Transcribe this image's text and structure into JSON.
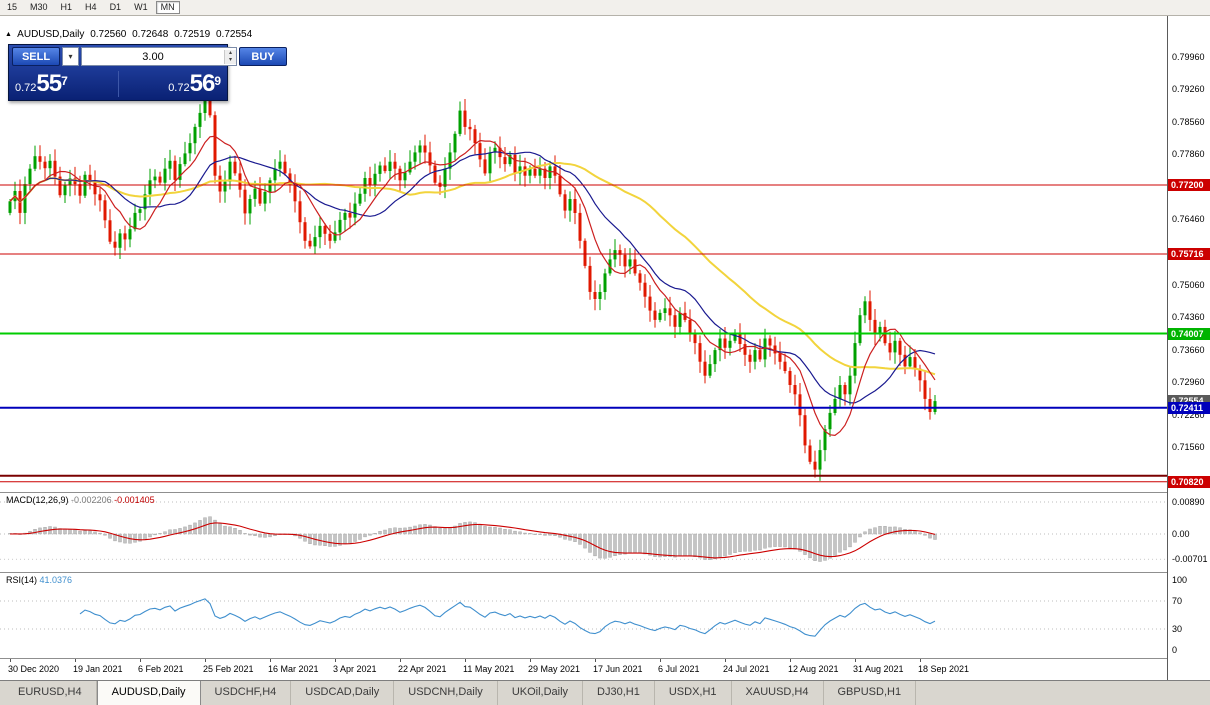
{
  "toolbar": {
    "timeframes": [
      "15",
      "M30",
      "H1",
      "H4",
      "D1",
      "W1",
      "MN"
    ],
    "active": "MN"
  },
  "header": {
    "symbol": "AUDUSD,Daily",
    "open": "0.72560",
    "high": "0.72648",
    "low": "0.72519",
    "close": "0.72554"
  },
  "trade_panel": {
    "sell_label": "SELL",
    "buy_label": "BUY",
    "volume": "3.00",
    "sell_price": {
      "prefix": "0.72",
      "big": "55",
      "sup": "7"
    },
    "buy_price": {
      "prefix": "0.72",
      "big": "56",
      "sup": "9"
    }
  },
  "indicators": {
    "macd": {
      "label": "MACD(12,26,9)",
      "value_main": "-0.002206",
      "value_signal": "-0.001405",
      "axis": [
        "0.00890",
        "0.00",
        "-0.00701"
      ]
    },
    "rsi": {
      "label": "RSI(14)",
      "value": "41.0376",
      "axis": [
        "100",
        "70",
        "30",
        "0"
      ],
      "levels": [
        70,
        30
      ]
    }
  },
  "price_axis": {
    "labels": [
      "0.79960",
      "0.79260",
      "0.78560",
      "0.77860",
      "0.77160",
      "0.76460",
      "0.75760",
      "0.75060",
      "0.74360",
      "0.73660",
      "0.72960",
      "0.72260",
      "0.71560",
      "0.70860"
    ],
    "badges": [
      {
        "text": "0.77200",
        "price": 0.772,
        "color": "#cc0000"
      },
      {
        "text": "0.75716",
        "price": 0.75716,
        "color": "#cc0000"
      },
      {
        "text": "0.74007",
        "price": 0.74007,
        "color": "#00b400"
      },
      {
        "text": "0.72554",
        "price": 0.72554,
        "color": "#5a5a5a"
      },
      {
        "text": "0.72411",
        "price": 0.72411,
        "color": "#0000bb"
      },
      {
        "text": "0.70820",
        "price": 0.7082,
        "color": "#cc0000"
      }
    ]
  },
  "time_axis": {
    "labels": [
      "30 Dec 2020",
      "19 Jan 2021",
      "6 Feb 2021",
      "25 Feb 2021",
      "16 Mar 2021",
      "3 Apr 2021",
      "22 Apr 2021",
      "11 May 2021",
      "29 May 2021",
      "17 Jun 2021",
      "6 Jul 2021",
      "24 Jul 2021",
      "12 Aug 2021",
      "31 Aug 2021",
      "18 Sep 2021"
    ],
    "indices": [
      0,
      13,
      26,
      39,
      52,
      65,
      78,
      91,
      104,
      117,
      130,
      143,
      156,
      169,
      182
    ]
  },
  "tabs": {
    "active_index": 1,
    "items": [
      {
        "label": "EURUSD,H4"
      },
      {
        "label": "AUDUSD,Daily"
      },
      {
        "label": "USDCHF,H4"
      },
      {
        "label": "USDCAD,Daily"
      },
      {
        "label": "USDCNH,Daily"
      },
      {
        "label": "UKOil,Daily"
      },
      {
        "label": "DJ30,H1"
      },
      {
        "label": "USDX,H1"
      },
      {
        "label": "XAUUSD,H4"
      },
      {
        "label": "GBPUSD,H1"
      }
    ]
  },
  "chart_data": {
    "type": "candlestick",
    "symbol": "AUDUSD",
    "timeframe": "Daily",
    "title": "AUDUSD,Daily",
    "ohlc_current": {
      "open": 0.7256,
      "high": 0.72648,
      "low": 0.72519,
      "close": 0.72554
    },
    "y_axis": {
      "top": 0.7996,
      "step": 0.007,
      "labels_count": 14
    },
    "first_open": 0.766,
    "closes": [
      0.7685,
      0.7707,
      0.766,
      0.7722,
      0.7755,
      0.7782,
      0.777,
      0.7756,
      0.7772,
      0.7738,
      0.7698,
      0.772,
      0.7734,
      0.7722,
      0.7697,
      0.7742,
      0.7727,
      0.77,
      0.7687,
      0.7644,
      0.7598,
      0.7585,
      0.7616,
      0.7603,
      0.7625,
      0.766,
      0.7668,
      0.77,
      0.773,
      0.7738,
      0.7725,
      0.7755,
      0.7772,
      0.7731,
      0.7765,
      0.7788,
      0.781,
      0.7845,
      0.7875,
      0.7905,
      0.787,
      0.774,
      0.7706,
      0.7727,
      0.777,
      0.7745,
      0.771,
      0.7659,
      0.769,
      0.7712,
      0.768,
      0.7705,
      0.773,
      0.7755,
      0.777,
      0.7745,
      0.772,
      0.7685,
      0.764,
      0.76,
      0.7588,
      0.7608,
      0.7632,
      0.7615,
      0.76,
      0.7618,
      0.7645,
      0.766,
      0.765,
      0.768,
      0.7701,
      0.7735,
      0.772,
      0.7744,
      0.7762,
      0.775,
      0.777,
      0.7755,
      0.773,
      0.7747,
      0.777,
      0.779,
      0.7805,
      0.779,
      0.7762,
      0.7725,
      0.7716,
      0.7755,
      0.779,
      0.783,
      0.788,
      0.7845,
      0.784,
      0.781,
      0.7775,
      0.7745,
      0.779,
      0.78,
      0.778,
      0.7765,
      0.7785,
      0.7745,
      0.776,
      0.774,
      0.7755,
      0.774,
      0.7755,
      0.7735,
      0.776,
      0.774,
      0.77,
      0.7665,
      0.769,
      0.766,
      0.76,
      0.7546,
      0.749,
      0.7475,
      0.749,
      0.753,
      0.756,
      0.758,
      0.757,
      0.7545,
      0.756,
      0.753,
      0.751,
      0.748,
      0.745,
      0.743,
      0.7445,
      0.7455,
      0.744,
      0.7415,
      0.7445,
      0.743,
      0.74,
      0.738,
      0.734,
      0.731,
      0.7335,
      0.7365,
      0.739,
      0.737,
      0.7385,
      0.74,
      0.7378,
      0.7355,
      0.734,
      0.7365,
      0.7345,
      0.739,
      0.7375,
      0.7358,
      0.734,
      0.732,
      0.729,
      0.727,
      0.7225,
      0.716,
      0.7125,
      0.7108,
      0.715,
      0.7195,
      0.723,
      0.726,
      0.729,
      0.727,
      0.731,
      0.738,
      0.744,
      0.747,
      0.743,
      0.74,
      0.7415,
      0.738,
      0.736,
      0.7385,
      0.7355,
      0.733,
      0.735,
      0.7325,
      0.73,
      0.726,
      0.7232,
      0.72554
    ],
    "levels": [
      {
        "price": 0.772,
        "color": "#cc0000",
        "width": 1
      },
      {
        "price": 0.75716,
        "color": "#cc0000",
        "width": 1
      },
      {
        "price": 0.74007,
        "color": "#00cc00",
        "width": 2
      },
      {
        "price": 0.72411,
        "color": "#0000bb",
        "width": 2
      },
      {
        "price": 0.7095,
        "color": "#7a0000",
        "width": 2
      },
      {
        "price": 0.7082,
        "color": "#cc0000",
        "width": 1
      }
    ],
    "moving_averages": [
      {
        "period": 40,
        "color": "#f2d43c",
        "width": 2
      },
      {
        "period": 17,
        "color": "#1a1a90",
        "width": 1.2
      },
      {
        "period": 8,
        "color": "#cc2020",
        "width": 1.2
      }
    ],
    "candle_colors": {
      "up": "#00a000",
      "down": "#e01800"
    }
  }
}
